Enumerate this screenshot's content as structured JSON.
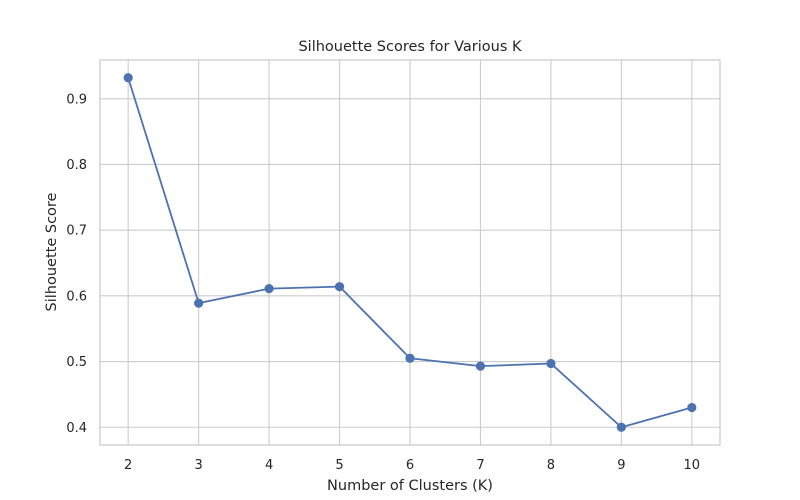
{
  "chart_data": {
    "type": "line",
    "title": "Silhouette Scores for Various K",
    "xlabel": "Number of Clusters (K)",
    "ylabel": "Silhouette Score",
    "x": [
      2,
      3,
      4,
      5,
      6,
      7,
      8,
      9,
      10
    ],
    "series": [
      {
        "values": [
          0.932,
          0.589,
          0.611,
          0.614,
          0.505,
          0.493,
          0.497,
          0.4,
          0.43
        ],
        "color": "#4c72b0",
        "marker": "circle"
      }
    ],
    "xticks": [
      2,
      3,
      4,
      5,
      6,
      7,
      8,
      9,
      10
    ],
    "yticks": [
      0.4,
      0.5,
      0.6,
      0.7,
      0.8,
      0.9
    ],
    "xlim": [
      1.6,
      10.4
    ],
    "ylim": [
      0.373,
      0.959
    ],
    "grid": true,
    "legend": "none"
  }
}
